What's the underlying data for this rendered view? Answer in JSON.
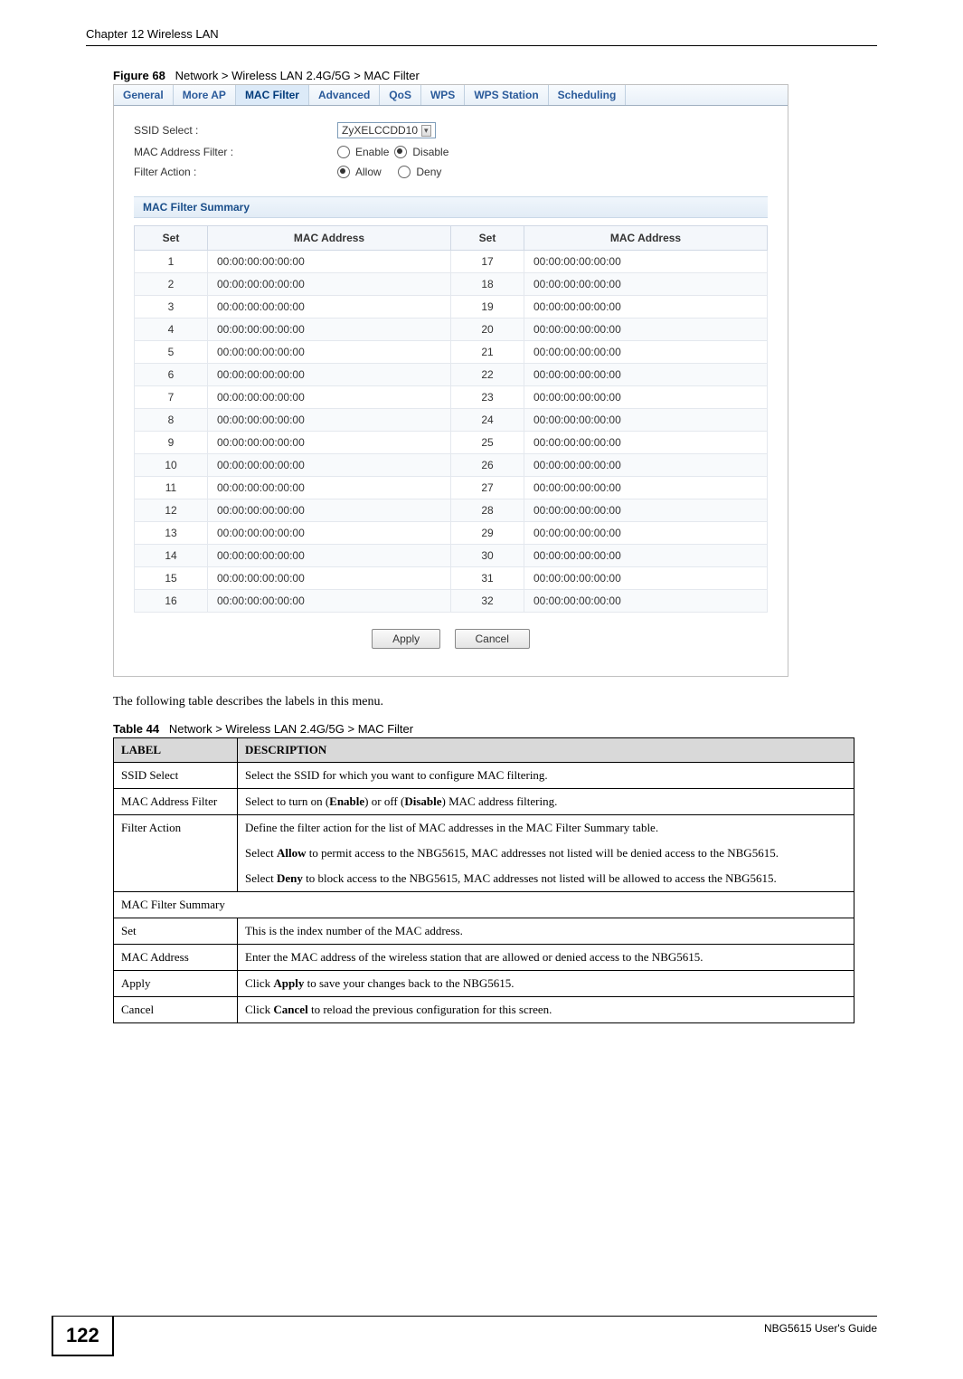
{
  "chapter_header": "Chapter 12 Wireless LAN",
  "figure": {
    "label": "Figure 68",
    "title": "Network > Wireless LAN 2.4G/5G > MAC Filter"
  },
  "tabs": [
    "General",
    "More AP",
    "MAC Filter",
    "Advanced",
    "QoS",
    "WPS",
    "WPS Station",
    "Scheduling"
  ],
  "active_tab_index": 2,
  "form": {
    "ssid_select_label": "SSID Select :",
    "ssid_select_value": "ZyXELCCDD10",
    "mac_filter_label": "MAC Address Filter :",
    "mac_filter_options": [
      "Enable",
      "Disable"
    ],
    "mac_filter_selected": 1,
    "filter_action_label": "Filter Action :",
    "filter_action_options": [
      "Allow",
      "Deny"
    ],
    "filter_action_selected": 0
  },
  "summary_title": "MAC Filter Summary",
  "mac_headers": [
    "Set",
    "MAC Address",
    "Set",
    "MAC Address"
  ],
  "mac_rows": [
    {
      "s1": "1",
      "m1": "00:00:00:00:00:00",
      "s2": "17",
      "m2": "00:00:00:00:00:00"
    },
    {
      "s1": "2",
      "m1": "00:00:00:00:00:00",
      "s2": "18",
      "m2": "00:00:00:00:00:00"
    },
    {
      "s1": "3",
      "m1": "00:00:00:00:00:00",
      "s2": "19",
      "m2": "00:00:00:00:00:00"
    },
    {
      "s1": "4",
      "m1": "00:00:00:00:00:00",
      "s2": "20",
      "m2": "00:00:00:00:00:00"
    },
    {
      "s1": "5",
      "m1": "00:00:00:00:00:00",
      "s2": "21",
      "m2": "00:00:00:00:00:00"
    },
    {
      "s1": "6",
      "m1": "00:00:00:00:00:00",
      "s2": "22",
      "m2": "00:00:00:00:00:00"
    },
    {
      "s1": "7",
      "m1": "00:00:00:00:00:00",
      "s2": "23",
      "m2": "00:00:00:00:00:00"
    },
    {
      "s1": "8",
      "m1": "00:00:00:00:00:00",
      "s2": "24",
      "m2": "00:00:00:00:00:00"
    },
    {
      "s1": "9",
      "m1": "00:00:00:00:00:00",
      "s2": "25",
      "m2": "00:00:00:00:00:00"
    },
    {
      "s1": "10",
      "m1": "00:00:00:00:00:00",
      "s2": "26",
      "m2": "00:00:00:00:00:00"
    },
    {
      "s1": "11",
      "m1": "00:00:00:00:00:00",
      "s2": "27",
      "m2": "00:00:00:00:00:00"
    },
    {
      "s1": "12",
      "m1": "00:00:00:00:00:00",
      "s2": "28",
      "m2": "00:00:00:00:00:00"
    },
    {
      "s1": "13",
      "m1": "00:00:00:00:00:00",
      "s2": "29",
      "m2": "00:00:00:00:00:00"
    },
    {
      "s1": "14",
      "m1": "00:00:00:00:00:00",
      "s2": "30",
      "m2": "00:00:00:00:00:00"
    },
    {
      "s1": "15",
      "m1": "00:00:00:00:00:00",
      "s2": "31",
      "m2": "00:00:00:00:00:00"
    },
    {
      "s1": "16",
      "m1": "00:00:00:00:00:00",
      "s2": "32",
      "m2": "00:00:00:00:00:00"
    }
  ],
  "buttons": {
    "apply": "Apply",
    "cancel": "Cancel"
  },
  "body_text": "The following table describes the labels in this menu.",
  "table": {
    "label": "Table 44",
    "title": "Network > Wireless LAN 2.4G/5G > MAC Filter",
    "headers": [
      "LABEL",
      "DESCRIPTION"
    ],
    "rows": [
      {
        "label": "SSID Select",
        "desc": [
          "Select the SSID for which you want to configure MAC filtering."
        ]
      },
      {
        "label": "MAC Address Filter",
        "desc": [
          "Select to turn on (<b>Enable</b>) or off (<b>Disable</b>) MAC address filtering."
        ]
      },
      {
        "label": "Filter Action",
        "desc": [
          "Define the filter action for the list of MAC addresses in the MAC Filter Summary table.",
          "Select <b>Allow</b> to permit access to the NBG5615, MAC addresses not listed will be denied access to the NBG5615.",
          "Select <b>Deny</b> to block access to the NBG5615, MAC addresses not listed will be allowed to access the NBG5615."
        ]
      },
      {
        "label": "MAC Filter Summary",
        "span": true
      },
      {
        "label": "Set",
        "desc": [
          "This is the index number of the MAC address."
        ]
      },
      {
        "label": "MAC Address",
        "desc": [
          "Enter the MAC address of the wireless station that are allowed or denied access to the NBG5615."
        ]
      },
      {
        "label": "Apply",
        "desc": [
          "Click <b>Apply</b> to save your changes back to the NBG5615."
        ]
      },
      {
        "label": "Cancel",
        "desc": [
          "Click <b>Cancel</b> to reload the previous configuration for this screen."
        ]
      }
    ]
  },
  "footer": {
    "page_number": "122",
    "guide": "NBG5615 User's Guide"
  }
}
